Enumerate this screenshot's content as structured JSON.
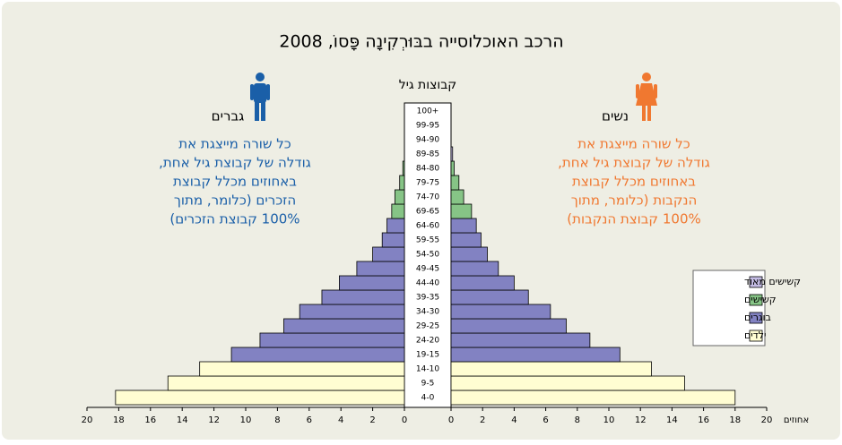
{
  "chart_data": {
    "type": "population-pyramid",
    "title": "הרכב האוכלוסייה בבּוּרְקִינָה פָּסוֹ, 2008",
    "age_axis_label": "קבוצות גיל",
    "x_axis_label": "אחוזים",
    "categories": [
      "4-0",
      "9-5",
      "14-10",
      "19-15",
      "24-20",
      "29-25",
      "34-30",
      "39-35",
      "44-40",
      "49-45",
      "54-50",
      "59-55",
      "64-60",
      "69-65",
      "74-70",
      "79-75",
      "84-80",
      "89-85",
      "94-90",
      "99-95",
      "100+"
    ],
    "series": [
      {
        "name": "גברים",
        "color": "#1a5fa8",
        "note": [
          "כל שורה מייצגת את",
          "גודלה של קבוצת גיל אחת,",
          "באחוזים מכלל קבוצת",
          "הזכרים (כלומר, מתוך",
          "100% קבוצת הזכרים)"
        ],
        "values": [
          18.2,
          14.9,
          12.9,
          10.9,
          9.1,
          7.6,
          6.6,
          5.2,
          4.1,
          3.0,
          2.0,
          1.4,
          1.1,
          0.8,
          0.6,
          0.3,
          0.1,
          0,
          0,
          0,
          0
        ]
      },
      {
        "name": "נשים",
        "color": "#f07830",
        "note": [
          "כל שורה מייצגת את",
          "גודלה של קבוצת גיל אחת,",
          "באחוזים מכלל קבוצת",
          "הנקבות (כלומר, מתוך",
          "100% קבוצת הנקבות)"
        ],
        "values": [
          18.0,
          14.8,
          12.7,
          10.7,
          8.8,
          7.3,
          6.3,
          4.9,
          4.0,
          3.0,
          2.3,
          1.9,
          1.6,
          1.3,
          0.8,
          0.5,
          0.2,
          0.1,
          0,
          0,
          0
        ]
      }
    ],
    "groups": [
      {
        "name": "קשישים מאוד",
        "color": "#c4bce4"
      },
      {
        "name": "קשישים",
        "color": "#86c486"
      },
      {
        "name": "בוגרים",
        "color": "#8282c2"
      },
      {
        "name": "ילדים",
        "color": "#fffdd2"
      }
    ],
    "category_group": [
      3,
      3,
      3,
      2,
      2,
      2,
      2,
      2,
      2,
      2,
      2,
      2,
      2,
      1,
      1,
      1,
      1,
      0,
      0,
      0,
      0
    ],
    "xlim": [
      0,
      20
    ],
    "xticks": [
      0,
      2,
      4,
      6,
      8,
      10,
      12,
      14,
      16,
      18,
      20
    ]
  }
}
